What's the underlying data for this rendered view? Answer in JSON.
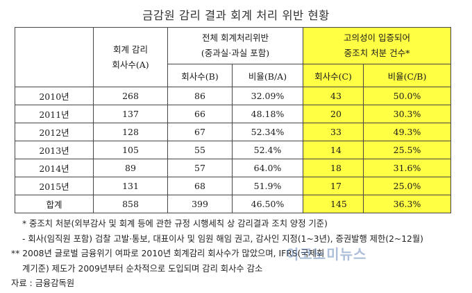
{
  "title": "금감원 감리 결과 회계 처리 위반 현황",
  "header": {
    "col_a_line1": "회계 감리",
    "col_a_line2": "회사수(A)",
    "col_total_line1": "전체 회계처리위반",
    "col_total_line2": "(중과실·과실 포함)",
    "col_intent_line1": "고의성이 입증되어",
    "col_intent_line2": "중조치 처분 건수*",
    "sub_b": "회사수(B)",
    "sub_ba": "비율(B/A)",
    "sub_c": "회사수(C)",
    "sub_cb": "비율(C/B)"
  },
  "rows": [
    {
      "year": "2010년",
      "a": "268",
      "b": "86",
      "ba": "32.09%",
      "c": "43",
      "cb": "50.0%"
    },
    {
      "year": "2011년",
      "a": "137",
      "b": "66",
      "ba": "48.18%",
      "c": "20",
      "cb": "30.3%"
    },
    {
      "year": "2012년",
      "a": "128",
      "b": "67",
      "ba": "52.34%",
      "c": "33",
      "cb": "49.3%"
    },
    {
      "year": "2013년",
      "a": "105",
      "b": "55",
      "ba": "52.4%",
      "c": "14",
      "cb": "25.5%"
    },
    {
      "year": "2014년",
      "a": "89",
      "b": "57",
      "ba": "64.0%",
      "c": "18",
      "cb": "31.6%"
    },
    {
      "year": "2015년",
      "a": "131",
      "b": "68",
      "ba": "51.9%",
      "c": "17",
      "cb": "25.0%"
    },
    {
      "year": "합계",
      "a": "858",
      "b": "399",
      "ba": "46.50%",
      "c": "145",
      "cb": "36.3%"
    }
  ],
  "notes": [
    "* 중조치 처분(외부감사 및 회계 등에 관한 규정 시행세칙 상 감리결과 조치 양정 기준)",
    "- 회사(임직원 포함) 검찰 고발·통보, 대표이사 및 임원 해임 권고, 감사인 지정(1~3년), 증권발행 제한(2~12월)",
    "** 2008년 글로벌 금융위기 여파로 2010년 회계감리 회사수가 많았으며, IFRS(국제회",
    "계기준) 제도가 2009년부터 순차적으로 도입되며 감리 회사수 감소",
    "자료 : 금융감독원"
  ],
  "watermark": "이코노미뉴스"
}
